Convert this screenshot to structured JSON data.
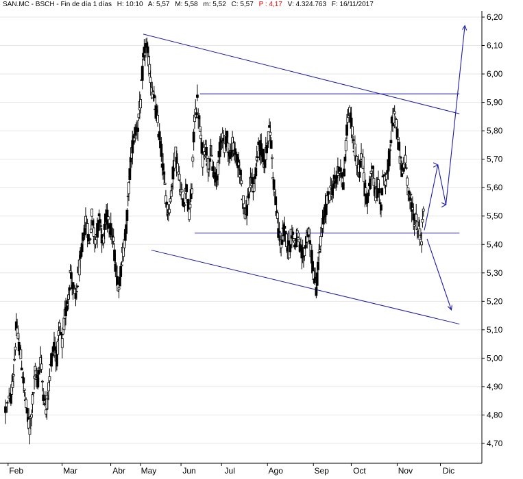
{
  "header": {
    "symbol": "SAN.MC - BSCH - Fin de día 1 días",
    "high": "H: 10:10",
    "ask": "A: 5,57",
    "max": "M: 5,58",
    "min": "m: 5,52",
    "close": "C: 5,57",
    "pct": "P : 4,17",
    "volume": "V: 4.324.763",
    "date": "F: 16/11/2017"
  },
  "colors": {
    "candle": "#000000",
    "trendline": "#1a1aa6",
    "grid": "#e6e6e6",
    "axis": "#000000",
    "negative": "#e00000"
  },
  "chart_data": {
    "type": "candlestick",
    "ylim": [
      4.66,
      6.22
    ],
    "y_ticks": [
      "6,20",
      "6,10",
      "6,00",
      "5,90",
      "5,80",
      "5,70",
      "5,60",
      "5,50",
      "5,40",
      "5,30",
      "5,20",
      "5,10",
      "5,00",
      "4,90",
      "4,80",
      "4,70"
    ],
    "x_labels": [
      "Feb",
      "Mar",
      "Abr",
      "May",
      "Jun",
      "Jul",
      "Ago",
      "Sep",
      "Oct",
      "Nov",
      "Dic"
    ],
    "x_positions": [
      1,
      21,
      39,
      50,
      65,
      80,
      97,
      114,
      128,
      145,
      161
    ],
    "x_extent": [
      -5,
      170
    ],
    "price_path": [
      [
        -3,
        4.82
      ],
      [
        -1,
        4.86
      ],
      [
        0,
        4.95
      ],
      [
        1,
        5.1
      ],
      [
        2,
        5.05
      ],
      [
        3,
        4.98
      ],
      [
        4,
        4.88
      ],
      [
        5,
        4.8
      ],
      [
        6,
        4.75
      ],
      [
        7,
        4.85
      ],
      [
        8,
        4.95
      ],
      [
        9,
        4.92
      ],
      [
        10,
        5.0
      ],
      [
        11,
        4.88
      ],
      [
        12,
        4.82
      ],
      [
        13,
        4.9
      ],
      [
        14,
        5.0
      ],
      [
        15,
        5.05
      ],
      [
        16,
        5.0
      ],
      [
        17,
        5.1
      ],
      [
        18,
        5.05
      ],
      [
        19,
        5.15
      ],
      [
        20,
        5.2
      ],
      [
        21,
        5.3
      ],
      [
        22,
        5.25
      ],
      [
        23,
        5.2
      ],
      [
        24,
        5.3
      ],
      [
        25,
        5.35
      ],
      [
        26,
        5.45
      ],
      [
        27,
        5.48
      ],
      [
        28,
        5.4
      ],
      [
        29,
        5.5
      ],
      [
        30,
        5.42
      ],
      [
        31,
        5.45
      ],
      [
        32,
        5.5
      ],
      [
        33,
        5.4
      ],
      [
        34,
        5.48
      ],
      [
        35,
        5.5
      ],
      [
        36,
        5.45
      ],
      [
        37,
        5.4
      ],
      [
        38,
        5.3
      ],
      [
        39,
        5.25
      ],
      [
        40,
        5.35
      ],
      [
        41,
        5.4
      ],
      [
        42,
        5.5
      ],
      [
        43,
        5.65
      ],
      [
        44,
        5.75
      ],
      [
        45,
        5.8
      ],
      [
        46,
        5.82
      ],
      [
        47,
        5.9
      ],
      [
        48,
        6.05
      ],
      [
        49,
        6.1
      ],
      [
        50,
        6.05
      ],
      [
        51,
        5.95
      ],
      [
        52,
        5.9
      ],
      [
        53,
        5.85
      ],
      [
        54,
        5.78
      ],
      [
        55,
        5.7
      ],
      [
        56,
        5.6
      ],
      [
        57,
        5.52
      ],
      [
        58,
        5.55
      ],
      [
        59,
        5.65
      ],
      [
        60,
        5.72
      ],
      [
        61,
        5.65
      ],
      [
        62,
        5.58
      ],
      [
        63,
        5.55
      ],
      [
        64,
        5.6
      ],
      [
        65,
        5.5
      ],
      [
        66,
        5.6
      ],
      [
        67,
        5.85
      ],
      [
        68,
        5.9
      ],
      [
        69,
        5.8
      ],
      [
        70,
        5.7
      ],
      [
        71,
        5.75
      ],
      [
        72,
        5.68
      ],
      [
        73,
        5.72
      ],
      [
        74,
        5.65
      ],
      [
        75,
        5.62
      ],
      [
        76,
        5.7
      ],
      [
        77,
        5.8
      ],
      [
        78,
        5.75
      ],
      [
        79,
        5.78
      ],
      [
        80,
        5.7
      ],
      [
        81,
        5.75
      ],
      [
        82,
        5.72
      ],
      [
        83,
        5.68
      ],
      [
        84,
        5.65
      ],
      [
        85,
        5.55
      ],
      [
        86,
        5.5
      ],
      [
        87,
        5.58
      ],
      [
        88,
        5.62
      ],
      [
        89,
        5.6
      ],
      [
        90,
        5.7
      ],
      [
        91,
        5.75
      ],
      [
        92,
        5.72
      ],
      [
        93,
        5.68
      ],
      [
        94,
        5.78
      ],
      [
        95,
        5.8
      ],
      [
        96,
        5.65
      ],
      [
        97,
        5.55
      ],
      [
        98,
        5.45
      ],
      [
        99,
        5.4
      ],
      [
        100,
        5.45
      ],
      [
        101,
        5.42
      ],
      [
        102,
        5.38
      ],
      [
        103,
        5.45
      ],
      [
        104,
        5.4
      ],
      [
        105,
        5.42
      ],
      [
        106,
        5.38
      ],
      [
        107,
        5.35
      ],
      [
        108,
        5.4
      ],
      [
        109,
        5.45
      ],
      [
        110,
        5.38
      ],
      [
        111,
        5.3
      ],
      [
        112,
        5.25
      ],
      [
        113,
        5.35
      ],
      [
        114,
        5.45
      ],
      [
        115,
        5.5
      ],
      [
        116,
        5.55
      ],
      [
        117,
        5.58
      ],
      [
        118,
        5.6
      ],
      [
        119,
        5.62
      ],
      [
        120,
        5.65
      ],
      [
        121,
        5.68
      ],
      [
        122,
        5.6
      ],
      [
        123,
        5.75
      ],
      [
        124,
        5.88
      ],
      [
        125,
        5.82
      ],
      [
        126,
        5.75
      ],
      [
        127,
        5.7
      ],
      [
        128,
        5.65
      ],
      [
        129,
        5.72
      ],
      [
        130,
        5.6
      ],
      [
        131,
        5.55
      ],
      [
        132,
        5.62
      ],
      [
        133,
        5.65
      ],
      [
        134,
        5.58
      ],
      [
        135,
        5.6
      ],
      [
        136,
        5.55
      ],
      [
        137,
        5.65
      ],
      [
        138,
        5.62
      ],
      [
        139,
        5.7
      ],
      [
        140,
        5.82
      ],
      [
        141,
        5.85
      ],
      [
        142,
        5.8
      ],
      [
        143,
        5.7
      ],
      [
        144,
        5.65
      ],
      [
        145,
        5.7
      ],
      [
        146,
        5.6
      ],
      [
        147,
        5.55
      ],
      [
        148,
        5.5
      ],
      [
        149,
        5.48
      ],
      [
        150,
        5.45
      ],
      [
        151,
        5.42
      ],
      [
        152,
        5.57
      ]
    ],
    "annotations": {
      "lines": [
        [
          48,
          6.14,
          165,
          5.86
        ],
        [
          51,
          5.38,
          165,
          5.12
        ],
        [
          69,
          5.93,
          165,
          5.93
        ],
        [
          67,
          5.44,
          165,
          5.44
        ]
      ],
      "arrows": [
        [
          152,
          5.45,
          157,
          5.68,
          160,
          5.54,
          167,
          6.17
        ],
        [
          153,
          5.42,
          162,
          5.17
        ]
      ]
    }
  }
}
